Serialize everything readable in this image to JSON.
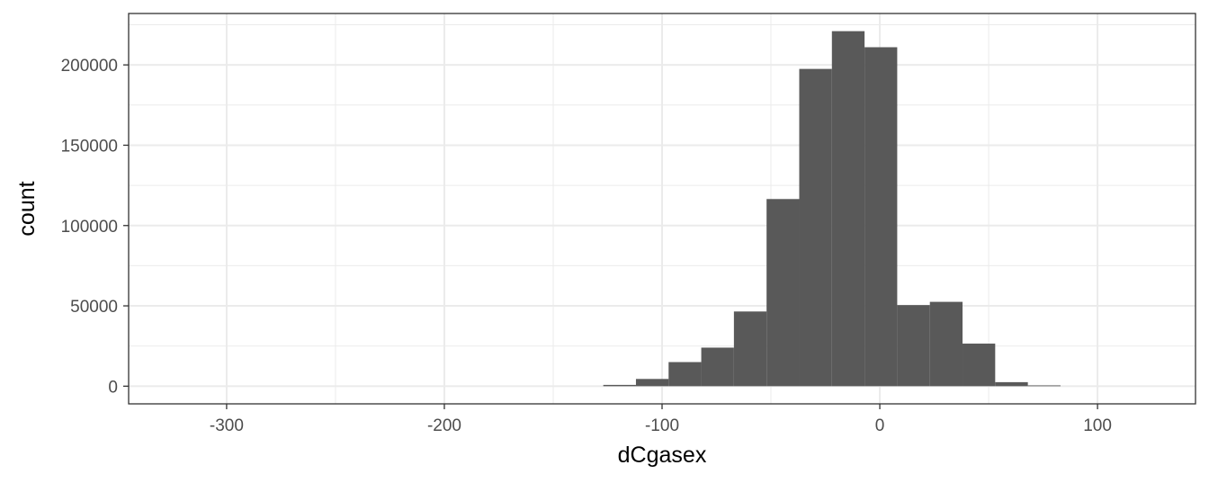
{
  "chart_data": {
    "type": "bar",
    "subtype": "histogram",
    "title": "",
    "xlabel": "dCgasex",
    "ylabel": "count",
    "xlim": [
      -345,
      145
    ],
    "ylim": [
      -11000,
      232000
    ],
    "x_breaks": [
      -300,
      -200,
      -100,
      0,
      100
    ],
    "x_tick_labels": [
      "-300",
      "-200",
      "-100",
      "0",
      "100"
    ],
    "x_minor_breaks": [
      -250,
      -150,
      -50,
      50
    ],
    "y_breaks": [
      0,
      50000,
      100000,
      150000,
      200000
    ],
    "y_tick_labels": [
      "0",
      "50000",
      "100000",
      "150000",
      "200000"
    ],
    "y_minor_breaks": [
      25000,
      75000,
      125000,
      175000,
      225000
    ],
    "grid": true,
    "bin_width": 15,
    "bins": [
      {
        "x0": -127,
        "x1": -112,
        "count": 800
      },
      {
        "x0": -112,
        "x1": -97,
        "count": 4500
      },
      {
        "x0": -97,
        "x1": -82,
        "count": 15000
      },
      {
        "x0": -82,
        "x1": -67,
        "count": 24000
      },
      {
        "x0": -67,
        "x1": -52,
        "count": 46500
      },
      {
        "x0": -52,
        "x1": -37,
        "count": 116500
      },
      {
        "x0": -37,
        "x1": -22,
        "count": 197500
      },
      {
        "x0": -22,
        "x1": -7,
        "count": 221000
      },
      {
        "x0": -7,
        "x1": 8,
        "count": 211000
      },
      {
        "x0": 8,
        "x1": 23,
        "count": 50500
      },
      {
        "x0": 23,
        "x1": 38,
        "count": 52500
      },
      {
        "x0": 38,
        "x1": 53,
        "count": 26500
      },
      {
        "x0": 53,
        "x1": 68,
        "count": 2500
      },
      {
        "x0": 68,
        "x1": 83,
        "count": 500
      }
    ]
  },
  "colors": {
    "bar_fill": "#595959",
    "panel_background": "#ffffff",
    "grid": "#ebebeb",
    "border": "#333333",
    "tick_text": "#4d4d4d",
    "axis_title": "#000000"
  }
}
